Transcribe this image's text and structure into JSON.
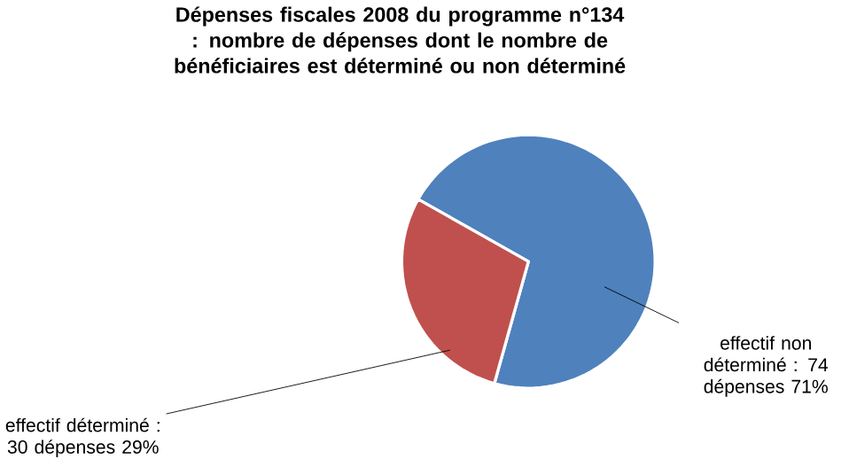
{
  "chart_data": {
    "type": "pie",
    "title": "Dépenses fiscales 2008 du programme n°134 : nombre de dépenses dont le nombre de bénéficiaires est déterminé ou non déterminé",
    "categories": [
      "effectif non déterminé",
      "effectif déterminé"
    ],
    "values": [
      74,
      30
    ],
    "colors": [
      "#4f81bd",
      "#c0504d"
    ],
    "value_labels": [
      ": 74 dépenses 71%",
      ": 30 dépenses 29%"
    ]
  }
}
